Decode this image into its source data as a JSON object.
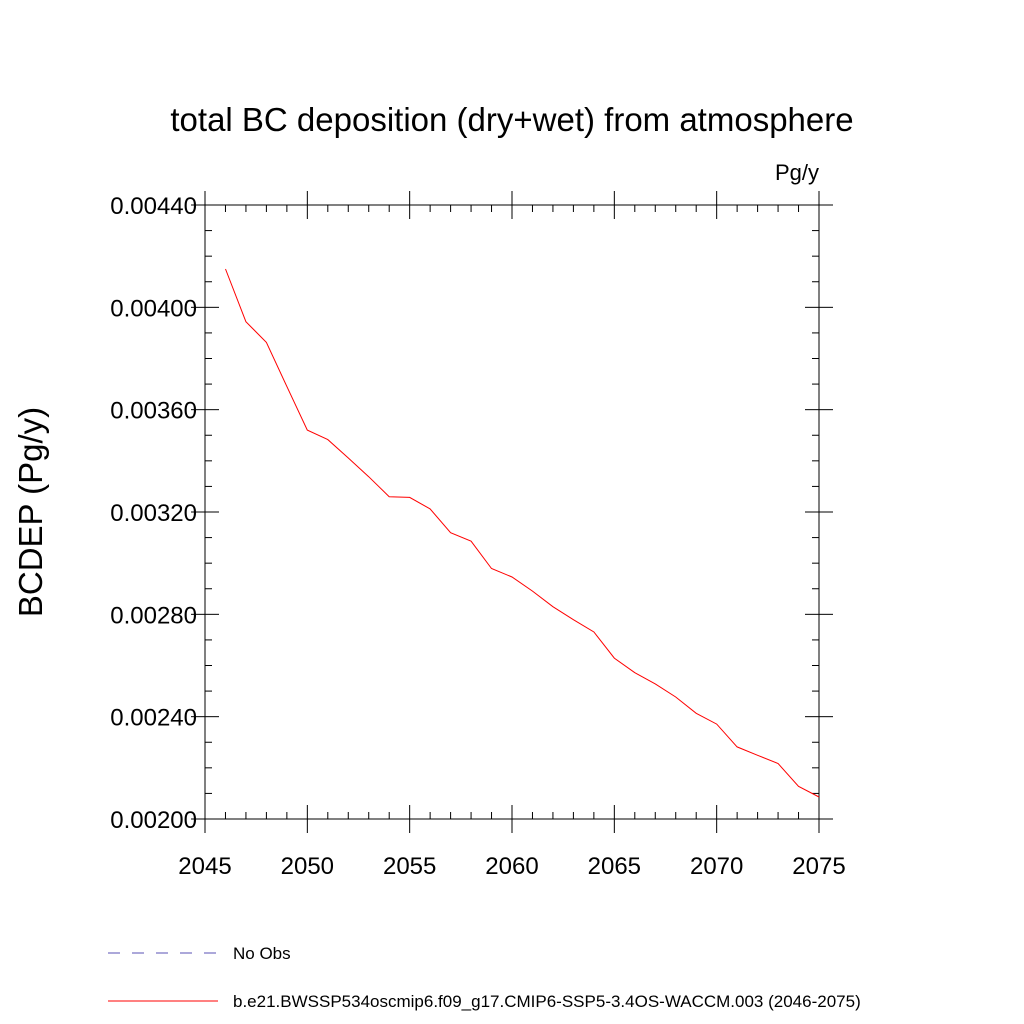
{
  "chart_data": {
    "type": "line",
    "title": "total BC deposition (dry+wet) from atmosphere",
    "units": "Pg/y",
    "ylabel": "BCDEP  (Pg/y)",
    "xlabel": "",
    "xlim": [
      2045,
      2075
    ],
    "ylim": [
      0.002,
      0.0044
    ],
    "xticks": [
      "2045",
      "2050",
      "2055",
      "2060",
      "2065",
      "2070",
      "2075"
    ],
    "yticks": [
      "0.00200",
      "0.00240",
      "0.00280",
      "0.00320",
      "0.00360",
      "0.00400",
      "0.00440"
    ],
    "series": [
      {
        "name": "b.e21.BWSSP534oscmip6.f09_g17.CMIP6-SSP5-3.4OS-WACCM.003 (2046-2075)",
        "color": "#ff0000",
        "x": [
          2046,
          2047,
          2048,
          2049,
          2050,
          2051,
          2052,
          2053,
          2054,
          2055,
          2056,
          2057,
          2058,
          2059,
          2060,
          2061,
          2062,
          2063,
          2064,
          2065,
          2066,
          2067,
          2068,
          2069,
          2070,
          2071,
          2072,
          2073,
          2074,
          2075
        ],
        "values": [
          0.00415,
          0.003944,
          0.003863,
          0.00369,
          0.00352,
          0.003483,
          0.003411,
          0.003338,
          0.00326,
          0.003257,
          0.003212,
          0.003119,
          0.003086,
          0.002979,
          0.002946,
          0.002891,
          0.00283,
          0.002779,
          0.002731,
          0.002629,
          0.002572,
          0.002528,
          0.002477,
          0.002413,
          0.002371,
          0.002282,
          0.002249,
          0.002217,
          0.002128,
          0.002086
        ]
      }
    ],
    "legend": [
      {
        "label": "No Obs",
        "color": "#5a50b4",
        "style": "dashed"
      },
      {
        "label": "b.e21.BWSSP534oscmip6.f09_g17.CMIP6-SSP5-3.4OS-WACCM.003 (2046-2075)",
        "color": "#ff0000",
        "style": "solid"
      }
    ]
  }
}
